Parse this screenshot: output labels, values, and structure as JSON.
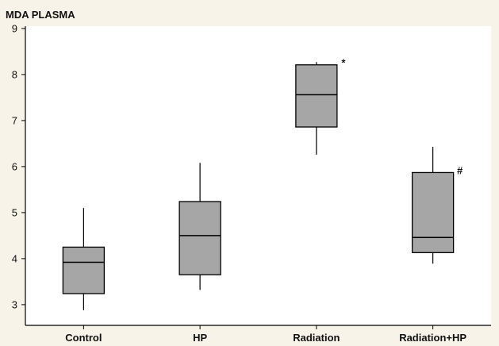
{
  "chart_data": {
    "type": "box",
    "title": "MDA PLASMA",
    "xlabel": "",
    "ylabel": "",
    "ylim": [
      2.55,
      9.05
    ],
    "yticks": [
      3,
      4,
      5,
      6,
      7,
      8,
      9
    ],
    "grid": false,
    "colors": {
      "box_fill": "#a6a6a6",
      "box_stroke": "#000000",
      "plot_bg": "#ffffff",
      "page_bg": "#f7f3e8"
    },
    "categories": [
      "Control",
      "HP",
      "Radiation",
      "Radiation+HP"
    ],
    "boxes": [
      {
        "category": "Control",
        "min": 2.88,
        "q1": 3.24,
        "median": 3.92,
        "q3": 4.25,
        "max": 5.1,
        "annotation": ""
      },
      {
        "category": "HP",
        "min": 3.32,
        "q1": 3.65,
        "median": 4.5,
        "q3": 5.24,
        "max": 6.08,
        "annotation": ""
      },
      {
        "category": "Radiation",
        "min": 6.26,
        "q1": 6.86,
        "median": 7.56,
        "q3": 8.21,
        "max": 8.27,
        "annotation": "*"
      },
      {
        "category": "Radiation+HP",
        "min": 3.89,
        "q1": 4.13,
        "median": 4.46,
        "q3": 5.87,
        "max": 6.43,
        "annotation": "#"
      }
    ]
  }
}
